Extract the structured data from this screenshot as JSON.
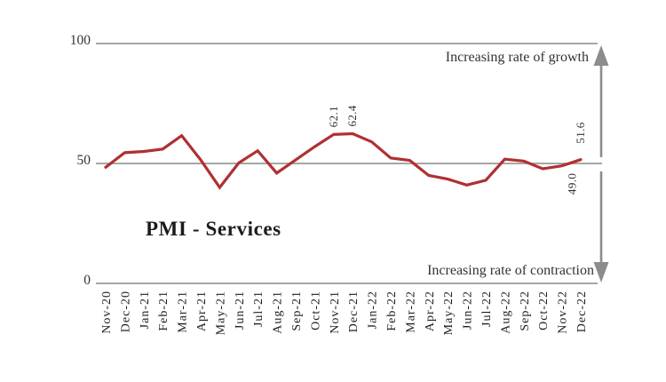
{
  "colors": {
    "line": "#b03032",
    "grid": "#9a9a9a",
    "arrow": "#8c8c8c",
    "text": "#333333"
  },
  "chart_data": {
    "type": "line",
    "title": "PMI - Services",
    "categories": [
      "Nov-20",
      "Dec-20",
      "Jan-21",
      "Feb-21",
      "Mar-21",
      "Apr-21",
      "May-21",
      "Jun-21",
      "Jul-21",
      "Aug-21",
      "Sep-21",
      "Oct-21",
      "Nov-21",
      "Dec-21",
      "Jan-22",
      "Feb-22",
      "Mar-22",
      "Apr-22",
      "May-22",
      "Jun-22",
      "Jul-22",
      "Aug-22",
      "Sep-22",
      "Oct-22",
      "Nov-22",
      "Dec-22"
    ],
    "values": [
      48.4,
      54.5,
      55.0,
      56.0,
      61.6,
      51.5,
      40.0,
      50.2,
      55.3,
      46.0,
      51.5,
      57.0,
      62.1,
      62.4,
      59.0,
      52.3,
      51.3,
      45.0,
      43.5,
      41.0,
      43.0,
      51.8,
      51.0,
      47.8,
      49.0,
      51.6
    ],
    "xlabel": "",
    "ylabel": "",
    "ylim": [
      0,
      100
    ],
    "yticks": [
      100,
      50,
      0
    ],
    "grid": "horizontal lines at 0, 50 and 100 only",
    "legend": "none",
    "reference_level": 50,
    "point_labels": [
      {
        "category": "Nov-21",
        "text": "62.1",
        "side": "above"
      },
      {
        "category": "Dec-21",
        "text": "62.4",
        "side": "above"
      },
      {
        "category": "Nov-22",
        "text": "49.0",
        "side": "below",
        "dx": 12
      },
      {
        "category": "Dec-22",
        "text": "51.6",
        "side": "above",
        "dy": -10
      }
    ],
    "annotations": {
      "growth": "Increasing rate of growth",
      "contraction": "Increasing rate of contraction"
    }
  }
}
